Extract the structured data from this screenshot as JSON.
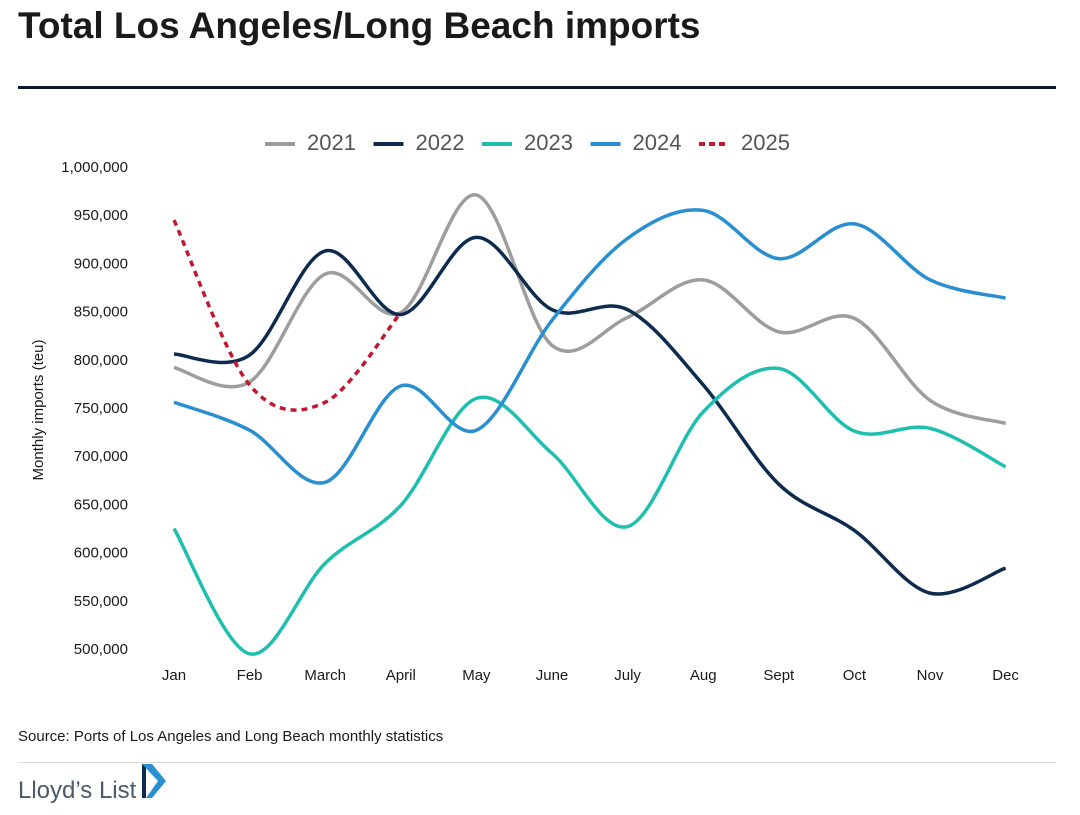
{
  "chart_data": {
    "type": "line",
    "title": "Total Los Angeles/Long Beach imports",
    "y_label": "Monthly imports (teu)",
    "source": "Source: Ports of Los Angeles and Long Beach monthly statistics",
    "brand": "Lloyd’s List",
    "categories": [
      "Jan",
      "Feb",
      "March",
      "April",
      "May",
      "June",
      "July",
      "Aug",
      "Sept",
      "Oct",
      "Nov",
      "Dec"
    ],
    "series": [
      {
        "name": "2021",
        "color": "#9d9d9d",
        "values": [
          793000,
          778000,
          890000,
          850000,
          972000,
          816000,
          845000,
          884000,
          830000,
          844000,
          759000,
          735000
        ]
      },
      {
        "name": "2022",
        "color": "#0d2b4e",
        "values": [
          807000,
          806000,
          914000,
          848000,
          928000,
          853000,
          853000,
          775000,
          672000,
          624000,
          559000,
          585000
        ]
      },
      {
        "name": "2023",
        "color": "#1fbfb0",
        "values": [
          626000,
          496000,
          590000,
          650000,
          761000,
          704000,
          628000,
          747000,
          792000,
          727000,
          730000,
          690000
        ]
      },
      {
        "name": "2024",
        "color": "#2a8fd0",
        "values": [
          757000,
          728000,
          674000,
          774000,
          728000,
          842000,
          927000,
          956000,
          906000,
          942000,
          884000,
          865000
        ]
      },
      {
        "name": "2025",
        "color": "#c0182f",
        "line_style": "dashed",
        "values": [
          946000,
          775000,
          757000,
          850000,
          null,
          null,
          null,
          null,
          null,
          null,
          null,
          null
        ]
      }
    ],
    "ylim": [
      500000,
      1000000
    ],
    "yticks": [
      {
        "value": 500000,
        "label": "500,000"
      },
      {
        "value": 550000,
        "label": "550,000"
      },
      {
        "value": 600000,
        "label": "600,000"
      },
      {
        "value": 650000,
        "label": "650,000"
      },
      {
        "value": 700000,
        "label": "700,000"
      },
      {
        "value": 750000,
        "label": "750,000"
      },
      {
        "value": 800000,
        "label": "800,000"
      },
      {
        "value": 850000,
        "label": "850,000"
      },
      {
        "value": 900000,
        "label": "900,000"
      },
      {
        "value": 950000,
        "label": "950,000"
      },
      {
        "value": 1000000,
        "label": "1,000,000"
      }
    ],
    "grid": false,
    "legend": "top"
  }
}
